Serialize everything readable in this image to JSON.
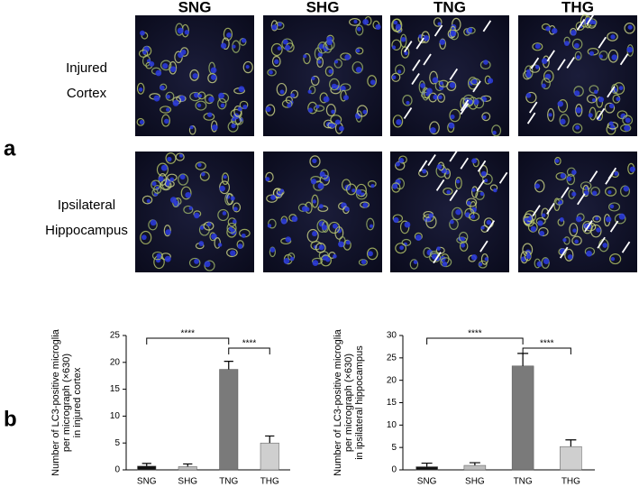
{
  "panel_a": {
    "label": "a",
    "columns": [
      "SNG",
      "SHG",
      "TNG",
      "THG"
    ],
    "rows": [
      [
        "Injured",
        "Cortex"
      ],
      [
        "Ipsilateral",
        "Hippocampus"
      ]
    ]
  },
  "panel_b": {
    "label": "b"
  },
  "chart_data": [
    {
      "type": "bar",
      "ylabel": [
        "Number of LC3-positive microglia",
        "per micrograph (×630)",
        "in injured cortex"
      ],
      "categories": [
        "SNG",
        "SHG",
        "TNG",
        "THG"
      ],
      "values": [
        0.7,
        0.6,
        18.7,
        5.0
      ],
      "errors": [
        0.5,
        0.5,
        1.5,
        1.3
      ],
      "colors": [
        "#111111",
        "#bdbdbd",
        "#7a7a7a",
        "#cfcfcf"
      ],
      "ylim": [
        0,
        25
      ],
      "yticks": [
        0,
        5,
        10,
        15,
        20,
        25
      ],
      "annotations": [
        {
          "text": "****",
          "between": [
            "SNG",
            "TNG"
          ]
        },
        {
          "text": "****",
          "between": [
            "TNG",
            "THG"
          ]
        }
      ]
    },
    {
      "type": "bar",
      "ylabel": [
        "Number of LC3-positive microglia",
        "per micrograph (×630)",
        "in ipsilateral hippocampus"
      ],
      "categories": [
        "SNG",
        "SHG",
        "TNG",
        "THG"
      ],
      "values": [
        0.7,
        1.0,
        23.2,
        5.2
      ],
      "errors": [
        0.8,
        0.6,
        2.8,
        1.5
      ],
      "colors": [
        "#111111",
        "#bdbdbd",
        "#7a7a7a",
        "#cfcfcf"
      ],
      "ylim": [
        0,
        30
      ],
      "yticks": [
        0,
        5,
        10,
        15,
        20,
        25,
        30
      ],
      "annotations": [
        {
          "text": "****",
          "between": [
            "SNG",
            "TNG"
          ]
        },
        {
          "text": "****",
          "between": [
            "TNG",
            "THG"
          ]
        }
      ]
    }
  ]
}
